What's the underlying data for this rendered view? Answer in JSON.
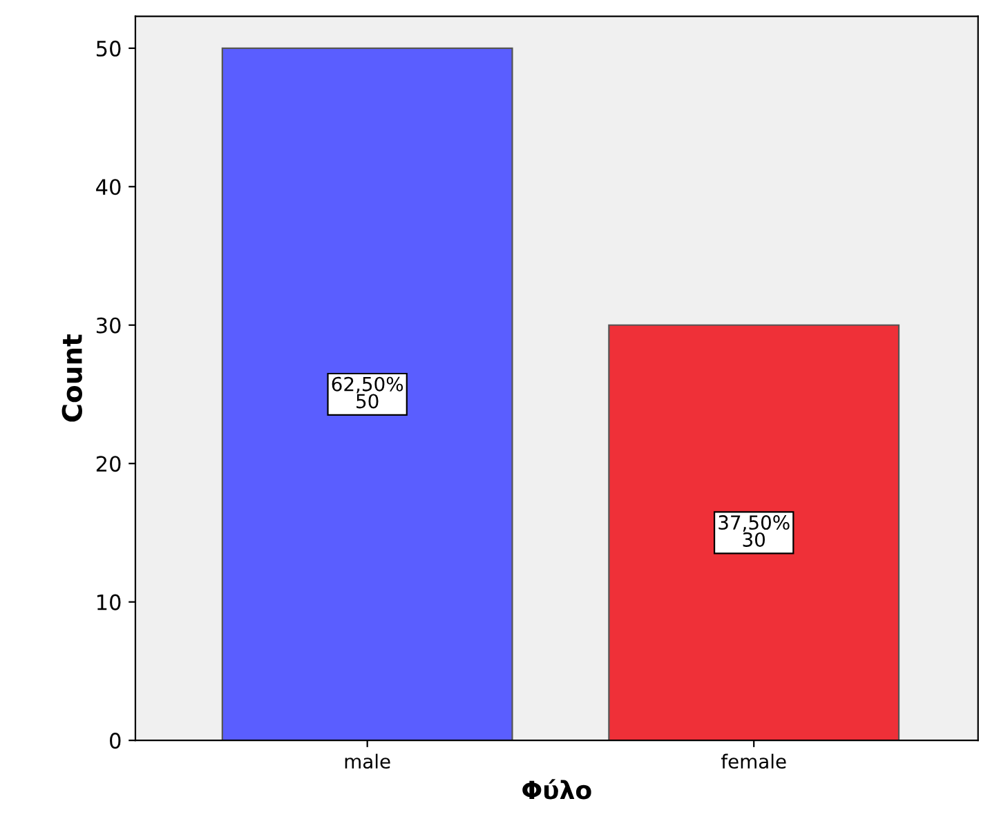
{
  "chart_data": {
    "type": "bar",
    "xlabel": "Φύλο",
    "ylabel": "Count",
    "categories": [
      "male",
      "female"
    ],
    "values": [
      50,
      30
    ],
    "colors": [
      "#5a5eff",
      "#ef3038"
    ],
    "value_labels": [
      "62,50%\n50",
      "37,50%\n30"
    ],
    "ylim": [
      0,
      52.3
    ],
    "yticks": [
      0,
      10,
      20,
      30,
      40,
      50
    ],
    "grid": false,
    "legend": false
  }
}
